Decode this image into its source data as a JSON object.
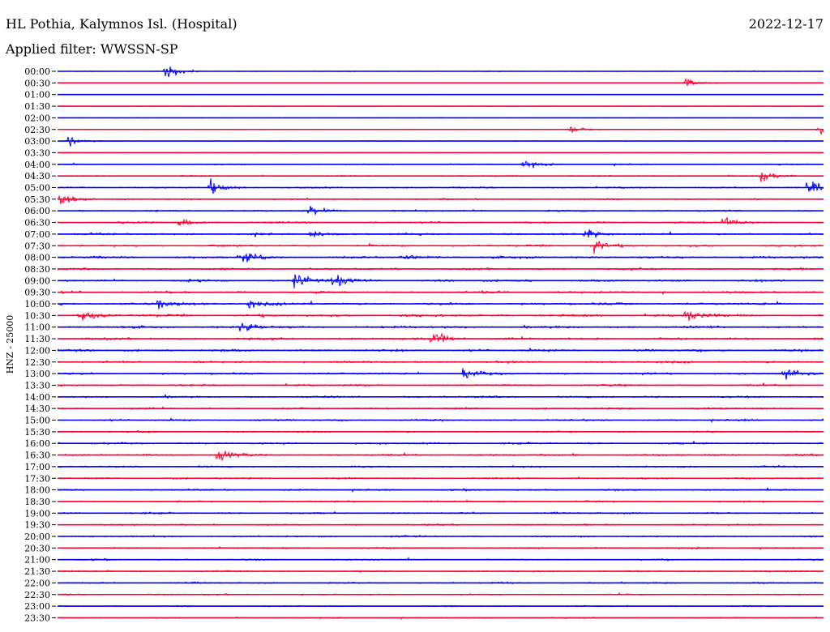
{
  "header": {
    "title": "HL Pothia, Kalymnos Isl. (Hospital)",
    "date": "2022-12-17",
    "filter": "Applied filter: WWSSN-SP"
  },
  "chart_data": {
    "type": "line",
    "title": "HL Pothia, Kalymnos Isl. (Hospital)",
    "subtitle": "Applied filter: WWSSN-SP",
    "date": "2022-12-17",
    "ylabel": "HNZ - 25000",
    "row_labels": [
      "00:00",
      "00:30",
      "01:00",
      "01:30",
      "02:00",
      "02:30",
      "03:00",
      "03:30",
      "04:00",
      "04:30",
      "05:00",
      "05:30",
      "06:00",
      "06:30",
      "07:00",
      "07:30",
      "08:00",
      "08:30",
      "09:00",
      "09:30",
      "10:00",
      "10:30",
      "11:00",
      "11:30",
      "12:00",
      "12:30",
      "13:00",
      "13:30",
      "14:00",
      "14:30",
      "15:00",
      "15:30",
      "16:00",
      "16:30",
      "17:00",
      "17:30",
      "18:00",
      "18:30",
      "19:00",
      "19:30",
      "20:00",
      "20:30",
      "21:00",
      "21:30",
      "22:00",
      "22:30",
      "23:00",
      "23:30"
    ],
    "colors": [
      "#0000ff",
      "#ff0033"
    ],
    "row_noise_level": [
      0.15,
      0.12,
      0.12,
      0.1,
      0.12,
      0.15,
      0.18,
      0.15,
      0.28,
      0.28,
      0.35,
      0.35,
      0.4,
      0.45,
      0.45,
      0.45,
      0.55,
      0.5,
      0.55,
      0.55,
      0.55,
      0.6,
      0.55,
      0.55,
      0.55,
      0.5,
      0.5,
      0.45,
      0.45,
      0.45,
      0.45,
      0.4,
      0.45,
      0.45,
      0.4,
      0.4,
      0.4,
      0.4,
      0.4,
      0.38,
      0.38,
      0.38,
      0.38,
      0.35,
      0.35,
      0.35,
      0.3,
      0.3
    ],
    "events": [
      {
        "row": 0,
        "t": 0.142,
        "amp": 1.0
      },
      {
        "row": 1,
        "t": 0.82,
        "amp": 0.7
      },
      {
        "row": 5,
        "t": 0.67,
        "amp": 0.6
      },
      {
        "row": 5,
        "t": 0.995,
        "amp": 0.8
      },
      {
        "row": 6,
        "t": 0.015,
        "amp": 0.6
      },
      {
        "row": 8,
        "t": 0.61,
        "amp": 0.7
      },
      {
        "row": 9,
        "t": 0.92,
        "amp": 0.8
      },
      {
        "row": 10,
        "t": 0.2,
        "amp": 1.0
      },
      {
        "row": 10,
        "t": 0.98,
        "amp": 1.0
      },
      {
        "row": 11,
        "t": 0.005,
        "amp": 1.0
      },
      {
        "row": 12,
        "t": 0.33,
        "amp": 0.8
      },
      {
        "row": 13,
        "t": 0.16,
        "amp": 0.6
      },
      {
        "row": 13,
        "t": 0.87,
        "amp": 0.8
      },
      {
        "row": 14,
        "t": 0.33,
        "amp": 0.6
      },
      {
        "row": 14,
        "t": 0.69,
        "amp": 0.8
      },
      {
        "row": 15,
        "t": 0.7,
        "amp": 1.0
      },
      {
        "row": 16,
        "t": 0.24,
        "amp": 0.8
      },
      {
        "row": 16,
        "t": 0.45,
        "amp": 0.6
      },
      {
        "row": 18,
        "t": 0.31,
        "amp": 1.0
      },
      {
        "row": 18,
        "t": 0.36,
        "amp": 0.9
      },
      {
        "row": 20,
        "t": 0.13,
        "amp": 0.7
      },
      {
        "row": 20,
        "t": 0.25,
        "amp": 0.6
      },
      {
        "row": 21,
        "t": 0.03,
        "amp": 0.8
      },
      {
        "row": 21,
        "t": 0.82,
        "amp": 0.8
      },
      {
        "row": 22,
        "t": 0.24,
        "amp": 0.9
      },
      {
        "row": 23,
        "t": 0.49,
        "amp": 1.0
      },
      {
        "row": 26,
        "t": 0.53,
        "amp": 0.8
      },
      {
        "row": 26,
        "t": 0.95,
        "amp": 0.7
      },
      {
        "row": 33,
        "t": 0.21,
        "amp": 0.7
      }
    ]
  }
}
